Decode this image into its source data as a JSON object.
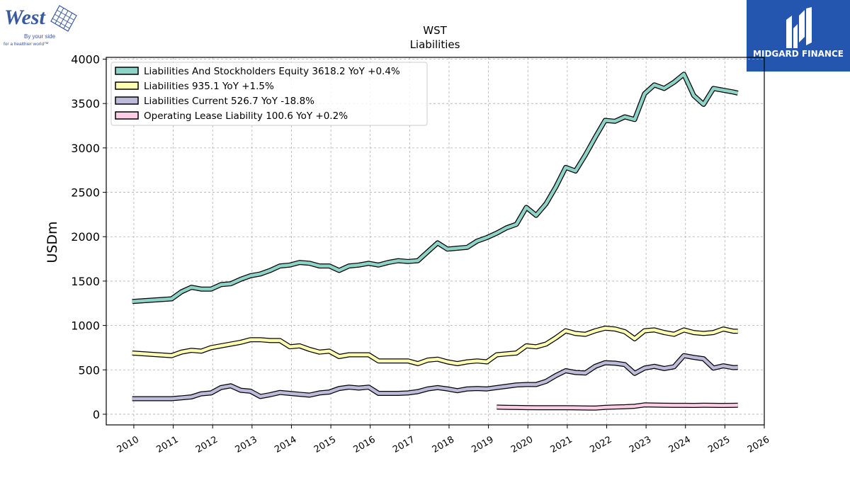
{
  "company_logo": {
    "name": "West",
    "tagline_1": "By your side",
    "tagline_2": "for a healthier world™",
    "color": "#3a5aa0"
  },
  "brand": {
    "name": "MIDGARD FINANCE",
    "bg_color": "#2456b0"
  },
  "chart_data": {
    "type": "line",
    "title": "WST",
    "subtitle": "Liabilities",
    "ylabel": "USDm",
    "xlabel": "",
    "ylim": [
      -120,
      4020
    ],
    "xlim": [
      2009.3,
      2026
    ],
    "yticks": [
      0,
      500,
      1000,
      1500,
      2000,
      2500,
      3000,
      3500,
      4000
    ],
    "xticks": [
      2010,
      2011,
      2012,
      2013,
      2014,
      2015,
      2016,
      2017,
      2018,
      2019,
      2020,
      2021,
      2022,
      2023,
      2024,
      2025,
      2026
    ],
    "grid": true,
    "legend_position": "top-left",
    "series": [
      {
        "name": "Liabilities And Stockholders Equity",
        "legend_label": "Liabilities And Stockholders Equity  3618.2 YoY +0.4%",
        "color": "#8dd3c7",
        "x": [
          2009.96,
          2010.96,
          2011.21,
          2011.46,
          2011.71,
          2011.96,
          2012.21,
          2012.46,
          2012.71,
          2012.96,
          2013.21,
          2013.46,
          2013.71,
          2013.96,
          2014.21,
          2014.46,
          2014.71,
          2014.96,
          2015.21,
          2015.46,
          2015.71,
          2015.96,
          2016.21,
          2016.46,
          2016.71,
          2016.96,
          2017.21,
          2017.46,
          2017.71,
          2017.96,
          2018.21,
          2018.46,
          2018.71,
          2018.96,
          2019.21,
          2019.46,
          2019.71,
          2019.96,
          2020.21,
          2020.46,
          2020.71,
          2020.96,
          2021.21,
          2021.46,
          2021.71,
          2021.96,
          2022.21,
          2022.46,
          2022.71,
          2022.96,
          2023.21,
          2023.46,
          2023.71,
          2023.96,
          2024.21,
          2024.46,
          2024.71,
          2024.96,
          2025.21,
          2025.33
        ],
        "values": [
          1270,
          1300,
          1380,
          1430,
          1410,
          1410,
          1460,
          1470,
          1520,
          1560,
          1580,
          1620,
          1670,
          1680,
          1710,
          1700,
          1670,
          1670,
          1620,
          1670,
          1680,
          1700,
          1680,
          1710,
          1730,
          1720,
          1730,
          1830,
          1930,
          1860,
          1870,
          1880,
          1950,
          1990,
          2040,
          2100,
          2140,
          2330,
          2240,
          2370,
          2560,
          2780,
          2740,
          2920,
          3120,
          3310,
          3300,
          3350,
          3320,
          3610,
          3710,
          3670,
          3740,
          3830,
          3590,
          3490,
          3670,
          3650,
          3630,
          3618.2
        ]
      },
      {
        "name": "Liabilities",
        "legend_label": "Liabilities  935.1 YoY +1.5%",
        "color": "#ffffb3",
        "x": [
          2009.96,
          2010.96,
          2011.21,
          2011.46,
          2011.71,
          2011.96,
          2012.21,
          2012.46,
          2012.71,
          2012.96,
          2013.21,
          2013.46,
          2013.71,
          2013.96,
          2014.21,
          2014.46,
          2014.71,
          2014.96,
          2015.21,
          2015.46,
          2015.71,
          2015.96,
          2016.21,
          2016.46,
          2016.71,
          2016.96,
          2017.21,
          2017.46,
          2017.71,
          2017.96,
          2018.21,
          2018.46,
          2018.71,
          2018.96,
          2019.21,
          2019.46,
          2019.71,
          2019.96,
          2020.21,
          2020.46,
          2020.71,
          2020.96,
          2021.21,
          2021.46,
          2021.71,
          2021.96,
          2022.21,
          2022.46,
          2022.71,
          2022.96,
          2023.21,
          2023.46,
          2023.71,
          2023.96,
          2024.21,
          2024.46,
          2024.71,
          2024.96,
          2025.21,
          2025.33
        ],
        "values": [
          690,
          660,
          700,
          720,
          710,
          750,
          770,
          790,
          810,
          840,
          840,
          830,
          830,
          760,
          770,
          730,
          700,
          710,
          650,
          670,
          670,
          670,
          600,
          600,
          600,
          600,
          570,
          610,
          620,
          590,
          570,
          590,
          600,
          590,
          670,
          680,
          690,
          770,
          760,
          790,
          860,
          940,
          910,
          900,
          940,
          970,
          960,
          930,
          850,
          940,
          950,
          920,
          900,
          950,
          920,
          910,
          920,
          960,
          935,
          935.1
        ]
      },
      {
        "name": "Liabilities Current",
        "legend_label": "Liabilities Current  526.7 YoY -18.8%",
        "color": "#bebada",
        "x": [
          2009.96,
          2010.96,
          2011.21,
          2011.46,
          2011.71,
          2011.96,
          2012.21,
          2012.46,
          2012.71,
          2012.96,
          2013.21,
          2013.46,
          2013.71,
          2013.96,
          2014.21,
          2014.46,
          2014.71,
          2014.96,
          2015.21,
          2015.46,
          2015.71,
          2015.96,
          2016.21,
          2016.46,
          2016.71,
          2016.96,
          2017.21,
          2017.46,
          2017.71,
          2017.96,
          2018.21,
          2018.46,
          2018.71,
          2018.96,
          2019.21,
          2019.46,
          2019.71,
          2019.96,
          2020.21,
          2020.46,
          2020.71,
          2020.96,
          2021.21,
          2021.46,
          2021.71,
          2021.96,
          2022.21,
          2022.46,
          2022.71,
          2022.96,
          2023.21,
          2023.46,
          2023.71,
          2023.96,
          2024.21,
          2024.46,
          2024.71,
          2024.96,
          2025.21,
          2025.33
        ],
        "values": [
          175,
          175,
          185,
          195,
          230,
          240,
          300,
          320,
          270,
          260,
          200,
          220,
          245,
          235,
          225,
          215,
          240,
          250,
          290,
          305,
          295,
          305,
          235,
          235,
          235,
          240,
          255,
          285,
          300,
          285,
          265,
          285,
          290,
          285,
          300,
          315,
          330,
          335,
          335,
          370,
          435,
          490,
          470,
          465,
          540,
          580,
          575,
          560,
          460,
          520,
          540,
          515,
          535,
          660,
          640,
          625,
          520,
          545,
          525,
          526.7
        ]
      },
      {
        "name": "Operating Lease Liability",
        "legend_label": "Operating Lease Liability  100.6 YoY +0.2%",
        "color": "#fccde5",
        "x": [
          2019.21,
          2019.46,
          2019.71,
          2019.96,
          2020.21,
          2020.46,
          2020.71,
          2020.96,
          2021.21,
          2021.46,
          2021.71,
          2021.96,
          2022.21,
          2022.46,
          2022.71,
          2022.96,
          2023.21,
          2023.46,
          2023.71,
          2023.96,
          2024.21,
          2024.46,
          2024.71,
          2024.96,
          2025.21,
          2025.33
        ],
        "values": [
          80,
          78,
          76,
          75,
          74,
          74,
          73,
          73,
          72,
          71,
          70,
          78,
          82,
          84,
          90,
          105,
          103,
          101,
          100,
          100,
          99,
          101,
          100,
          99,
          100,
          100.6
        ]
      }
    ]
  }
}
